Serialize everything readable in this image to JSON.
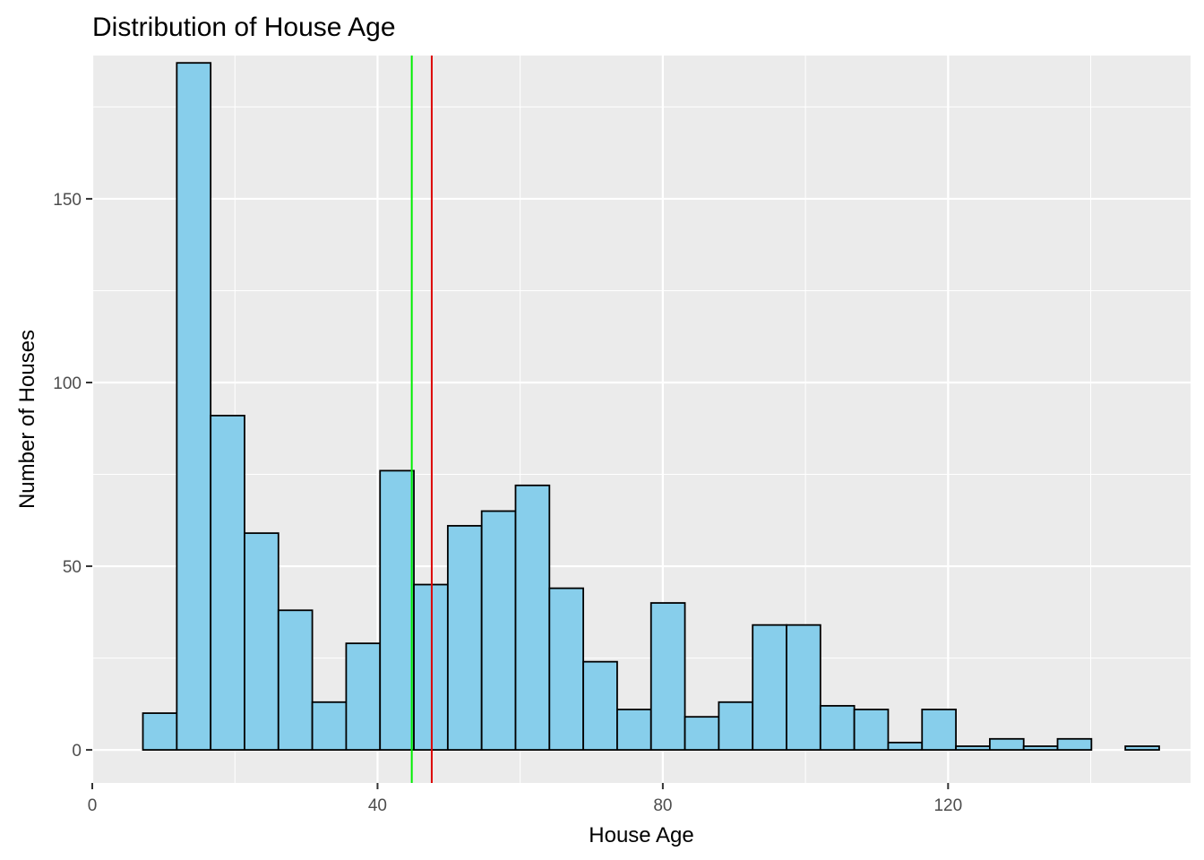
{
  "chart_data": {
    "type": "bar",
    "subtype": "histogram",
    "title": "Distribution of House Age",
    "xlabel": "House Age",
    "ylabel": "Number of Houses",
    "xlim": [
      0,
      154
    ],
    "ylim": [
      -9,
      189
    ],
    "x_ticks": [
      0,
      40,
      80,
      120
    ],
    "y_ticks": [
      0,
      50,
      100,
      150
    ],
    "grid": true,
    "bins": {
      "start": 7.1,
      "width": 4.75,
      "counts": [
        10,
        187,
        91,
        59,
        38,
        13,
        29,
        76,
        45,
        61,
        65,
        72,
        44,
        24,
        11,
        40,
        9,
        13,
        34,
        34,
        12,
        11,
        2,
        11,
        1,
        3,
        1,
        3,
        0,
        1
      ]
    },
    "reference_lines": [
      {
        "x": 44.8,
        "color": "#00ee00"
      },
      {
        "x": 47.6,
        "color": "#dd0000"
      }
    ],
    "colors": {
      "bar_fill": "#87ceeb",
      "bar_stroke": "#000000",
      "panel_bg": "#ebebeb",
      "grid": "#ffffff"
    }
  }
}
